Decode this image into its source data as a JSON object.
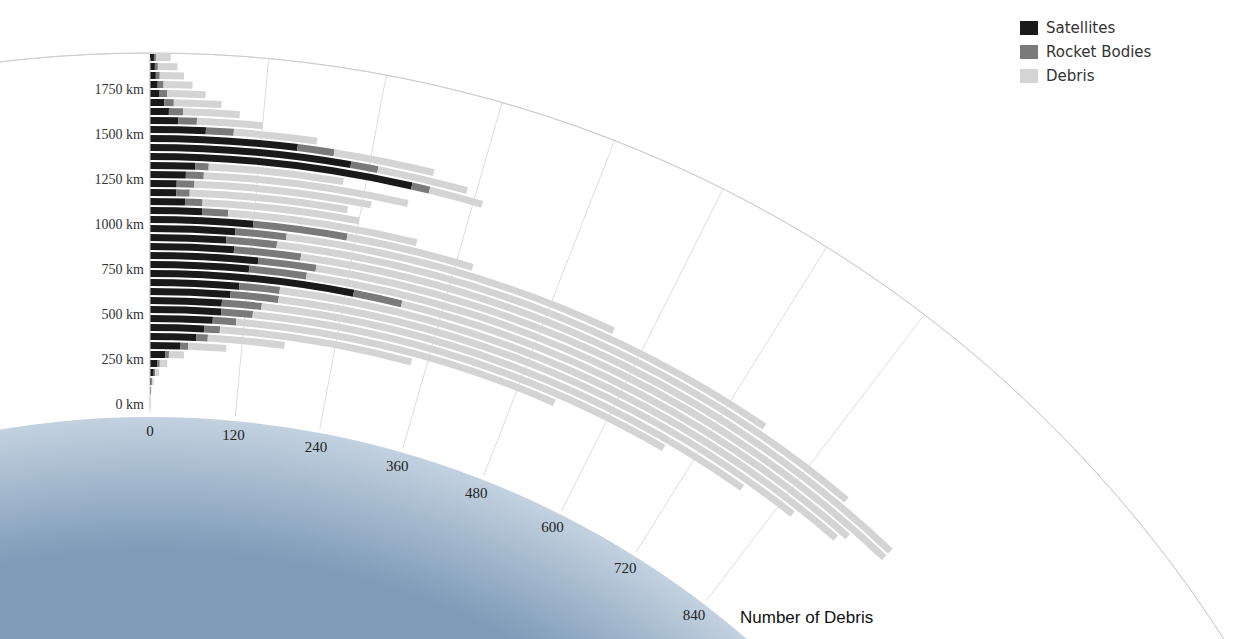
{
  "chart_data": {
    "type": "bar",
    "orientation": "horizontal",
    "stacked": true,
    "grid": true,
    "legend": "top-right",
    "xlabel": "Number of Debris",
    "xlim": [
      0,
      1080
    ],
    "xticks": [
      0,
      120,
      240,
      360,
      480,
      600,
      720,
      840
    ],
    "categories": [
      "0 km",
      null,
      null,
      null,
      null,
      "250 km",
      null,
      null,
      null,
      null,
      "500 km",
      null,
      null,
      null,
      null,
      "750 km",
      null,
      null,
      null,
      null,
      "1000 km",
      null,
      null,
      null,
      null,
      "1250 km",
      null,
      null,
      null,
      null,
      "1500 km",
      null,
      null,
      null,
      null,
      "1750 km",
      null,
      null,
      null,
      null
    ],
    "series": [
      {
        "name": "Satellites",
        "color": "#1a1a1a",
        "values": [
          0,
          0,
          1,
          2,
          5,
          10,
          20,
          40,
          60,
          70,
          80,
          90,
          90,
          100,
          110,
          250,
          120,
          130,
          100,
          90,
          100,
          120,
          60,
          40,
          30,
          30,
          40,
          50,
          290,
          220,
          160,
          60,
          30,
          20,
          15,
          10,
          8,
          6,
          5,
          4
        ]
      },
      {
        "name": "Rocket Bodies",
        "color": "#7a7a7a",
        "values": [
          0,
          0,
          0,
          1,
          2,
          3,
          5,
          10,
          15,
          20,
          30,
          40,
          50,
          60,
          50,
          60,
          70,
          70,
          80,
          60,
          60,
          110,
          30,
          20,
          15,
          20,
          20,
          15,
          20,
          30,
          40,
          30,
          20,
          15,
          10,
          8,
          6,
          4,
          3,
          2
        ]
      },
      {
        "name": "Debris",
        "color": "#d4d4d4",
        "values": [
          0,
          0,
          1,
          2,
          5,
          10,
          20,
          50,
          100,
          250,
          420,
          550,
          650,
          700,
          760,
          620,
          790,
          780,
          720,
          620,
          400,
          150,
          220,
          180,
          180,
          200,
          230,
          150,
          60,
          100,
          110,
          90,
          70,
          60,
          50,
          40,
          30,
          25,
          20,
          15
        ]
      }
    ]
  }
}
